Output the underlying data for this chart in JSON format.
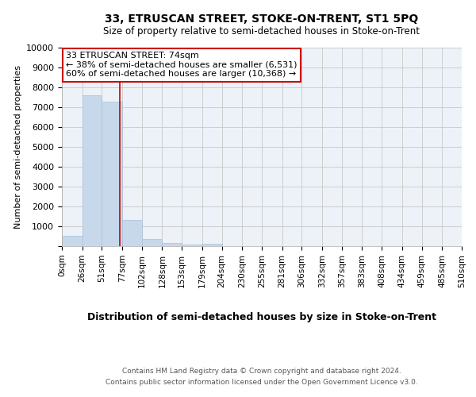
{
  "title": "33, ETRUSCAN STREET, STOKE-ON-TRENT, ST1 5PQ",
  "subtitle": "Size of property relative to semi-detached houses in Stoke-on-Trent",
  "xlabel": "Distribution of semi-detached houses by size in Stoke-on-Trent",
  "ylabel": "Number of semi-detached properties",
  "footer_line1": "Contains HM Land Registry data © Crown copyright and database right 2024.",
  "footer_line2": "Contains public sector information licensed under the Open Government Licence v3.0.",
  "annotation_line1": "33 ETRUSCAN STREET: 74sqm",
  "annotation_line2": "← 38% of semi-detached houses are smaller (6,531)",
  "annotation_line3": "60% of semi-detached houses are larger (10,368) →",
  "property_size_sqm": 74,
  "bar_color": "#c8d8eb",
  "bar_edge_color": "#a8c0d8",
  "vline_color": "#cc0000",
  "annotation_box_edge": "#cc0000",
  "background_color": "#edf2f8",
  "grid_color": "#c8c8c8",
  "bin_edges": [
    0,
    26,
    51,
    77,
    102,
    128,
    153,
    179,
    204,
    230,
    255,
    281,
    306,
    332,
    357,
    383,
    408,
    434,
    459,
    485,
    510
  ],
  "bin_labels": [
    "0sqm",
    "26sqm",
    "51sqm",
    "77sqm",
    "102sqm",
    "128sqm",
    "153sqm",
    "179sqm",
    "204sqm",
    "230sqm",
    "255sqm",
    "281sqm",
    "306sqm",
    "332sqm",
    "357sqm",
    "383sqm",
    "408sqm",
    "434sqm",
    "459sqm",
    "485sqm",
    "510sqm"
  ],
  "bar_heights": [
    530,
    7620,
    7270,
    1340,
    355,
    160,
    75,
    115,
    0,
    0,
    0,
    0,
    0,
    0,
    0,
    0,
    0,
    0,
    0,
    0
  ],
  "ylim": [
    0,
    10000
  ],
  "yticks": [
    0,
    1000,
    2000,
    3000,
    4000,
    5000,
    6000,
    7000,
    8000,
    9000,
    10000
  ]
}
